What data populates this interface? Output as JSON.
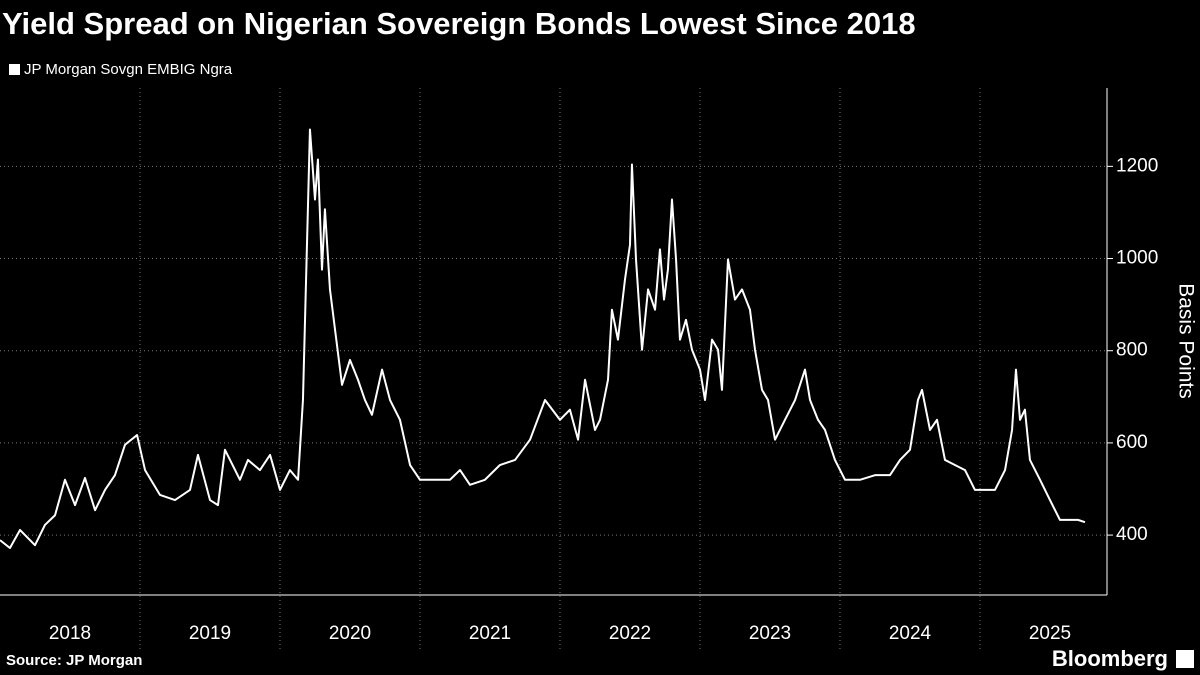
{
  "chart_data": {
    "type": "line",
    "title": "Yield Spread on Nigerian Sovereign Bonds Lowest Since 2018",
    "y_axis_label": "Basis Points",
    "source": "Source: JP Morgan",
    "logo": "Bloomberg",
    "xlim": [
      2018,
      2025.893
    ],
    "xticks": [
      {
        "value": 2018.5,
        "label": "2018"
      },
      {
        "value": 2019.5,
        "label": "2019"
      },
      {
        "value": 2020.5,
        "label": "2020"
      },
      {
        "value": 2021.5,
        "label": "2021"
      },
      {
        "value": 2022.5,
        "label": "2022"
      },
      {
        "value": 2023.5,
        "label": "2023"
      },
      {
        "value": 2024.5,
        "label": "2024"
      },
      {
        "value": 2025.5,
        "label": "2025"
      }
    ],
    "xgrid": [
      2019,
      2020,
      2021,
      2022,
      2023,
      2024,
      2025
    ],
    "ylim": [
      270,
      1370
    ],
    "yticks": [
      400,
      600,
      800,
      1000,
      1200
    ],
    "grid": true,
    "legend": "top-left",
    "series": [
      {
        "name": "JP Morgan Sovgn EMBIG Ngra",
        "color": "#ffffff",
        "x": [
          2018.0,
          2018.071,
          2018.143,
          2018.25,
          2018.321,
          2018.393,
          2018.464,
          2018.536,
          2018.607,
          2018.679,
          2018.75,
          2018.821,
          2018.893,
          2018.979,
          2019.036,
          2019.143,
          2019.25,
          2019.357,
          2019.414,
          2019.5,
          2019.557,
          2019.607,
          2019.714,
          2019.771,
          2019.857,
          2019.929,
          2020.0,
          2020.071,
          2020.129,
          2020.164,
          2020.214,
          2020.25,
          2020.271,
          2020.3,
          2020.321,
          2020.357,
          2020.393,
          2020.443,
          2020.5,
          2020.557,
          2020.607,
          2020.657,
          2020.729,
          2020.786,
          2020.857,
          2020.929,
          2021.0,
          2021.107,
          2021.214,
          2021.286,
          2021.357,
          2021.464,
          2021.571,
          2021.679,
          2021.786,
          2021.893,
          2022.0,
          2022.071,
          2022.129,
          2022.179,
          2022.25,
          2022.286,
          2022.343,
          2022.371,
          2022.414,
          2022.464,
          2022.5,
          2022.514,
          2022.543,
          2022.586,
          2022.629,
          2022.679,
          2022.714,
          2022.743,
          2022.771,
          2022.8,
          2022.829,
          2022.857,
          2022.9,
          2022.943,
          2023.0,
          2023.036,
          2023.086,
          2023.129,
          2023.157,
          2023.2,
          2023.25,
          2023.3,
          2023.357,
          2023.393,
          2023.443,
          2023.486,
          2023.536,
          2023.607,
          2023.679,
          2023.75,
          2023.786,
          2023.843,
          2023.893,
          2023.964,
          2024.036,
          2024.143,
          2024.25,
          2024.357,
          2024.429,
          2024.5,
          2024.557,
          2024.586,
          2024.643,
          2024.693,
          2024.75,
          2024.821,
          2024.893,
          2024.964,
          2025.036,
          2025.107,
          2025.179,
          2025.229,
          2025.257,
          2025.286,
          2025.321,
          2025.357,
          2025.429,
          2025.5,
          2025.571,
          2025.643,
          2025.7,
          2025.75
        ],
        "values": [
          389,
          372,
          411,
          378,
          422,
          443,
          520,
          465,
          524,
          454,
          498,
          530,
          596,
          617,
          541,
          487,
          476,
          498,
          574,
          476,
          465,
          585,
          520,
          563,
          541,
          574,
          498,
          541,
          520,
          693,
          1280,
          1128,
          1215,
          976,
          1107,
          933,
          846,
          726,
          780,
          737,
          693,
          661,
          759,
          693,
          650,
          552,
          520,
          520,
          520,
          541,
          509,
          520,
          552,
          563,
          607,
          693,
          650,
          672,
          607,
          737,
          628,
          650,
          737,
          889,
          824,
          954,
          1030,
          1204,
          998,
          802,
          933,
          889,
          1020,
          911,
          976,
          1128,
          998,
          824,
          867,
          802,
          759,
          693,
          824,
          802,
          715,
          998,
          911,
          933,
          889,
          802,
          715,
          693,
          607,
          650,
          693,
          759,
          693,
          650,
          628,
          563,
          520,
          520,
          530,
          530,
          563,
          585,
          693,
          715,
          628,
          650,
          563,
          552,
          541,
          498,
          498,
          498,
          541,
          628,
          759,
          650,
          672,
          563,
          520,
          476,
          433,
          433,
          433,
          428
        ]
      }
    ]
  }
}
